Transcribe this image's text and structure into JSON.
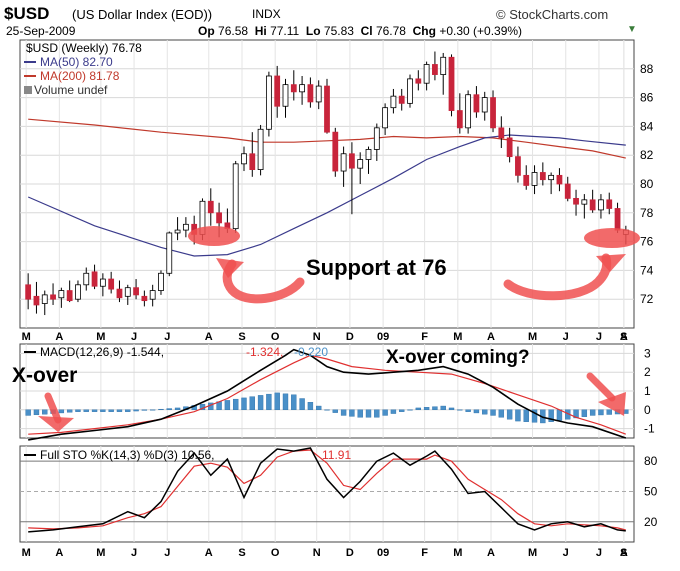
{
  "header": {
    "symbol": "$USD",
    "description": "(US Dollar Index (EOD))",
    "exchange": "INDX",
    "date": "25-Sep-2009",
    "open_label": "Op",
    "open": "76.58",
    "high_label": "Hi",
    "high": "77.11",
    "low_label": "Lo",
    "low": "75.83",
    "close_label": "Cl",
    "close": "76.78",
    "change_label": "Chg",
    "change": "+0.30 (+0.39%)",
    "brand": "© StockCharts.com",
    "collapse_icon": "triangle-down-icon"
  },
  "colors": {
    "up_candle": "#ffffff",
    "down_candle": "#c8243b",
    "ma50": "#3b3b8c",
    "ma200": "#c0392b",
    "macd_line": "#000000",
    "signal_line": "#e03030",
    "histogram": "#4a90c8",
    "sto_k": "#000000",
    "sto_d": "#e03030",
    "annotation": "#f05050"
  },
  "legends": {
    "price": "$USD (Weekly) 76.78",
    "ma50": "MA(50) 82.70",
    "ma200": "MA(200) 81.78",
    "volume": "Volume undef",
    "macd_prefix": "MACD(12,26,9) -1.544,",
    "macd_signal": "-1.324,",
    "macd_hist": "-0.220",
    "sto_prefix": "Full STO %K(14,3) %D(3) 10.56,",
    "sto_d": "11.91"
  },
  "annotations": {
    "support": "Support at 76",
    "xover": "X-over",
    "xover_coming": "X-over coming?"
  },
  "chart_data": [
    {
      "type": "candlestick",
      "title": "$USD (Weekly) 76.78",
      "x_tick_labels": [
        "M",
        "A",
        "M",
        "J",
        "J",
        "A",
        "S",
        "O",
        "N",
        "D",
        "09",
        "F",
        "M",
        "A",
        "M",
        "J",
        "J",
        "A",
        "S"
      ],
      "ylim": [
        70,
        90
      ],
      "yticks": [
        72,
        74,
        76,
        78,
        80,
        82,
        84,
        86,
        88
      ],
      "ohlc": [
        [
          73.0,
          73.8,
          71.3,
          72.0
        ],
        [
          72.2,
          73.2,
          71.0,
          71.6
        ],
        [
          71.7,
          72.6,
          70.9,
          72.3
        ],
        [
          72.3,
          73.1,
          71.6,
          72.0
        ],
        [
          72.1,
          72.8,
          71.4,
          72.6
        ],
        [
          72.6,
          73.3,
          71.8,
          71.9
        ],
        [
          72.0,
          73.3,
          71.8,
          73.0
        ],
        [
          73.0,
          74.2,
          72.6,
          73.8
        ],
        [
          73.9,
          74.4,
          72.7,
          72.9
        ],
        [
          72.9,
          73.8,
          72.2,
          73.4
        ],
        [
          73.4,
          73.9,
          72.4,
          72.7
        ],
        [
          72.7,
          73.3,
          71.8,
          72.1
        ],
        [
          72.2,
          73.0,
          71.6,
          72.8
        ],
        [
          72.8,
          73.4,
          72.0,
          72.3
        ],
        [
          72.2,
          72.6,
          71.5,
          71.9
        ],
        [
          72.0,
          73.0,
          71.5,
          72.6
        ],
        [
          72.6,
          74.0,
          72.3,
          73.8
        ],
        [
          73.8,
          76.7,
          73.6,
          76.6
        ],
        [
          76.6,
          77.7,
          76.1,
          76.8
        ],
        [
          76.8,
          77.7,
          76.3,
          77.2
        ],
        [
          77.2,
          77.8,
          75.8,
          76.5
        ],
        [
          76.5,
          79.0,
          76.1,
          78.8
        ],
        [
          78.8,
          79.7,
          77.1,
          78.0
        ],
        [
          78.0,
          78.7,
          76.3,
          77.3
        ],
        [
          77.3,
          78.3,
          76.6,
          76.9
        ],
        [
          76.9,
          81.6,
          76.6,
          81.4
        ],
        [
          81.4,
          82.6,
          80.9,
          82.1
        ],
        [
          82.1,
          83.6,
          80.5,
          81.0
        ],
        [
          81.0,
          84.1,
          80.6,
          83.8
        ],
        [
          83.8,
          87.8,
          83.3,
          87.5
        ],
        [
          87.5,
          88.2,
          84.6,
          85.4
        ],
        [
          85.4,
          87.3,
          84.6,
          86.9
        ],
        [
          86.9,
          87.9,
          85.8,
          86.4
        ],
        [
          86.4,
          87.5,
          85.5,
          86.9
        ],
        [
          86.9,
          87.4,
          85.3,
          85.7
        ],
        [
          85.7,
          87.2,
          85.2,
          86.8
        ],
        [
          86.8,
          87.3,
          83.5,
          83.6
        ],
        [
          83.6,
          83.9,
          80.5,
          80.9
        ],
        [
          80.9,
          82.6,
          79.8,
          82.1
        ],
        [
          82.1,
          82.9,
          77.9,
          81.1
        ],
        [
          81.1,
          82.2,
          80.0,
          81.7
        ],
        [
          81.7,
          82.6,
          80.7,
          82.4
        ],
        [
          82.4,
          84.2,
          81.6,
          83.9
        ],
        [
          83.9,
          85.6,
          83.4,
          85.3
        ],
        [
          85.3,
          86.6,
          84.9,
          86.1
        ],
        [
          86.1,
          86.6,
          85.1,
          85.6
        ],
        [
          85.6,
          87.6,
          85.3,
          87.3
        ],
        [
          87.3,
          87.9,
          86.5,
          87.0
        ],
        [
          87.0,
          88.5,
          86.5,
          88.3
        ],
        [
          88.3,
          89.2,
          87.2,
          87.6
        ],
        [
          87.6,
          89.1,
          86.2,
          88.8
        ],
        [
          88.8,
          89.0,
          84.7,
          85.1
        ],
        [
          85.1,
          86.3,
          83.5,
          83.9
        ],
        [
          83.9,
          86.5,
          83.5,
          86.2
        ],
        [
          86.2,
          86.8,
          84.6,
          85.0
        ],
        [
          85.0,
          86.4,
          84.4,
          86.0
        ],
        [
          86.0,
          86.5,
          83.6,
          83.9
        ],
        [
          83.9,
          84.7,
          82.5,
          83.2
        ],
        [
          83.2,
          83.9,
          81.5,
          81.9
        ],
        [
          81.9,
          82.6,
          80.1,
          80.6
        ],
        [
          80.6,
          81.3,
          79.6,
          79.9
        ],
        [
          79.9,
          81.3,
          79.3,
          80.8
        ],
        [
          80.8,
          81.5,
          79.9,
          80.3
        ],
        [
          80.3,
          80.8,
          79.3,
          80.6
        ],
        [
          80.6,
          81.1,
          79.5,
          80.0
        ],
        [
          80.0,
          80.5,
          78.8,
          79.0
        ],
        [
          79.0,
          79.6,
          77.8,
          78.6
        ],
        [
          78.6,
          79.3,
          77.6,
          78.9
        ],
        [
          78.9,
          79.6,
          78.0,
          78.2
        ],
        [
          78.2,
          79.3,
          77.6,
          78.9
        ],
        [
          78.9,
          79.4,
          77.9,
          78.3
        ],
        [
          78.3,
          78.7,
          76.6,
          76.8
        ],
        [
          76.5,
          77.1,
          75.8,
          76.8
        ]
      ],
      "ma50": [
        [
          0,
          79.1
        ],
        [
          8,
          77.1
        ],
        [
          16,
          75.6
        ],
        [
          20,
          75.0
        ],
        [
          24,
          75.1
        ],
        [
          28,
          75.8
        ],
        [
          32,
          76.9
        ],
        [
          36,
          78.0
        ],
        [
          40,
          79.2
        ],
        [
          44,
          80.4
        ],
        [
          48,
          81.7
        ],
        [
          52,
          82.6
        ],
        [
          55,
          83.2
        ],
        [
          58,
          83.4
        ],
        [
          61,
          83.3
        ],
        [
          64,
          83.2
        ],
        [
          67,
          83.0
        ],
        [
          72,
          82.7
        ]
      ],
      "ma200": [
        [
          0,
          84.5
        ],
        [
          8,
          84.1
        ],
        [
          16,
          83.6
        ],
        [
          24,
          83.2
        ],
        [
          28,
          82.9
        ],
        [
          32,
          82.9
        ],
        [
          36,
          83.0
        ],
        [
          40,
          83.1
        ],
        [
          44,
          83.3
        ],
        [
          48,
          83.2
        ],
        [
          52,
          83.3
        ],
        [
          56,
          83.2
        ],
        [
          60,
          82.9
        ],
        [
          64,
          82.6
        ],
        [
          68,
          82.3
        ],
        [
          72,
          81.8
        ]
      ]
    },
    {
      "type": "line",
      "title": "MACD(12,26,9)",
      "ylim": [
        -1.5,
        3.5
      ],
      "yticks": [
        3,
        2,
        1,
        0,
        -1
      ],
      "macd": [
        [
          0,
          -1.6
        ],
        [
          4,
          -1.3
        ],
        [
          8,
          -1.1
        ],
        [
          12,
          -0.9
        ],
        [
          16,
          -0.5
        ],
        [
          20,
          0.2
        ],
        [
          24,
          1.0
        ],
        [
          28,
          2.1
        ],
        [
          31,
          2.9
        ],
        [
          32,
          3.2
        ],
        [
          34,
          2.9
        ],
        [
          36,
          2.3
        ],
        [
          38,
          2.0
        ],
        [
          41,
          1.9
        ],
        [
          44,
          2.0
        ],
        [
          47,
          2.1
        ],
        [
          50,
          2.3
        ],
        [
          53,
          1.9
        ],
        [
          56,
          1.2
        ],
        [
          59,
          0.3
        ],
        [
          62,
          -0.4
        ],
        [
          65,
          -0.7
        ],
        [
          68,
          -0.9
        ],
        [
          72,
          -1.5
        ]
      ],
      "signal": [
        [
          0,
          -1.3
        ],
        [
          4,
          -1.2
        ],
        [
          8,
          -1.0
        ],
        [
          12,
          -0.8
        ],
        [
          16,
          -0.5
        ],
        [
          20,
          -0.1
        ],
        [
          24,
          0.6
        ],
        [
          28,
          1.6
        ],
        [
          32,
          2.5
        ],
        [
          34,
          2.9
        ],
        [
          36,
          2.7
        ],
        [
          39,
          2.3
        ],
        [
          43,
          2.1
        ],
        [
          47,
          2.0
        ],
        [
          51,
          1.9
        ],
        [
          55,
          1.4
        ],
        [
          59,
          0.8
        ],
        [
          63,
          0.2
        ],
        [
          66,
          -0.4
        ],
        [
          69,
          -0.8
        ],
        [
          72,
          -1.3
        ]
      ],
      "histogram": [
        [
          0,
          -0.3
        ],
        [
          6,
          -0.1
        ],
        [
          12,
          -0.1
        ],
        [
          18,
          0.1
        ],
        [
          21,
          0.3
        ],
        [
          24,
          0.5
        ],
        [
          27,
          0.7
        ],
        [
          30,
          0.9
        ],
        [
          32,
          0.8
        ],
        [
          34,
          0.4
        ],
        [
          36,
          0.0
        ],
        [
          38,
          -0.3
        ],
        [
          40,
          -0.4
        ],
        [
          42,
          -0.4
        ],
        [
          44,
          -0.2
        ],
        [
          47,
          0.1
        ],
        [
          50,
          0.2
        ],
        [
          53,
          -0.1
        ],
        [
          56,
          -0.3
        ],
        [
          59,
          -0.6
        ],
        [
          62,
          -0.7
        ],
        [
          65,
          -0.5
        ],
        [
          68,
          -0.3
        ],
        [
          72,
          -0.2
        ]
      ]
    },
    {
      "type": "line",
      "title": "Full STO %K(14,3) %D(3)",
      "ylim": [
        0,
        95
      ],
      "yticks": [
        80,
        50,
        20
      ],
      "k": [
        [
          0,
          10
        ],
        [
          3,
          12
        ],
        [
          6,
          15
        ],
        [
          9,
          18
        ],
        [
          12,
          30
        ],
        [
          14,
          24
        ],
        [
          16,
          40
        ],
        [
          18,
          70
        ],
        [
          20,
          88
        ],
        [
          22,
          66
        ],
        [
          24,
          82
        ],
        [
          26,
          44
        ],
        [
          28,
          78
        ],
        [
          30,
          92
        ],
        [
          32,
          90
        ],
        [
          34,
          93
        ],
        [
          36,
          62
        ],
        [
          38,
          44
        ],
        [
          40,
          60
        ],
        [
          42,
          80
        ],
        [
          44,
          88
        ],
        [
          46,
          76
        ],
        [
          48,
          85
        ],
        [
          49,
          90
        ],
        [
          51,
          72
        ],
        [
          53,
          48
        ],
        [
          55,
          50
        ],
        [
          57,
          34
        ],
        [
          59,
          18
        ],
        [
          61,
          12
        ],
        [
          63,
          18
        ],
        [
          65,
          20
        ],
        [
          67,
          15
        ],
        [
          69,
          18
        ],
        [
          71,
          12
        ],
        [
          72,
          11
        ]
      ],
      "d": [
        [
          0,
          14
        ],
        [
          3,
          13
        ],
        [
          6,
          14
        ],
        [
          9,
          16
        ],
        [
          12,
          24
        ],
        [
          14,
          28
        ],
        [
          16,
          35
        ],
        [
          18,
          55
        ],
        [
          20,
          75
        ],
        [
          22,
          78
        ],
        [
          24,
          74
        ],
        [
          26,
          58
        ],
        [
          28,
          66
        ],
        [
          30,
          84
        ],
        [
          32,
          90
        ],
        [
          34,
          91
        ],
        [
          36,
          78
        ],
        [
          38,
          56
        ],
        [
          40,
          52
        ],
        [
          42,
          68
        ],
        [
          44,
          82
        ],
        [
          46,
          82
        ],
        [
          48,
          82
        ],
        [
          49,
          86
        ],
        [
          51,
          80
        ],
        [
          53,
          62
        ],
        [
          55,
          52
        ],
        [
          57,
          42
        ],
        [
          59,
          28
        ],
        [
          61,
          18
        ],
        [
          63,
          16
        ],
        [
          65,
          18
        ],
        [
          67,
          17
        ],
        [
          69,
          16
        ],
        [
          71,
          14
        ],
        [
          72,
          12
        ]
      ]
    }
  ]
}
